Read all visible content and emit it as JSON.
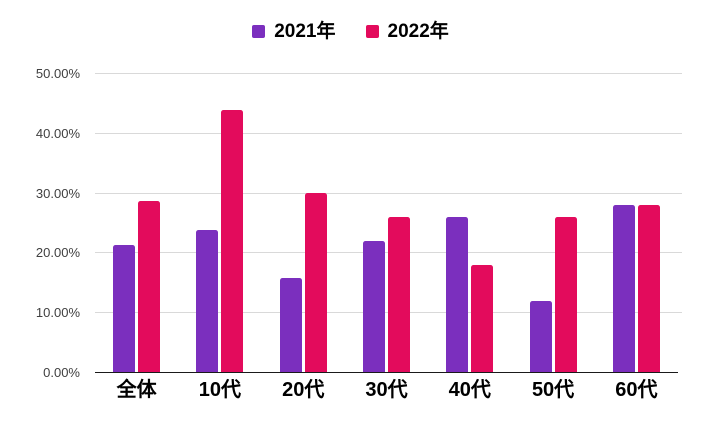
{
  "chart_data": {
    "type": "bar",
    "title": "",
    "categories": [
      "全体",
      "10代",
      "20代",
      "30代",
      "40代",
      "50代",
      "60代"
    ],
    "series": [
      {
        "name": "2021年",
        "color": "#7B2FBE",
        "values": [
          21.2,
          23.8,
          15.8,
          21.9,
          25.9,
          11.8,
          27.9
        ]
      },
      {
        "name": "2022年",
        "color": "#E30B5C",
        "values": [
          28.6,
          43.8,
          30.0,
          25.9,
          17.9,
          25.9,
          27.9
        ]
      }
    ],
    "xlabel": "",
    "ylabel": "",
    "ylim": [
      0,
      50
    ],
    "ytick_step": 10,
    "ytick_labels": [
      "0.00%",
      "10.00%",
      "20.00%",
      "30.00%",
      "40.00%",
      "50.00%"
    ],
    "grid": true,
    "legend_position": "top"
  },
  "colors": {
    "background": "#ffffff",
    "gridline": "#d9d9d9",
    "axis_line": "#1a1a1a",
    "ytick_text": "#404040",
    "xtick_text": "#000000",
    "series_2021": "#7B2FBE",
    "series_2022": "#E30B5C"
  }
}
